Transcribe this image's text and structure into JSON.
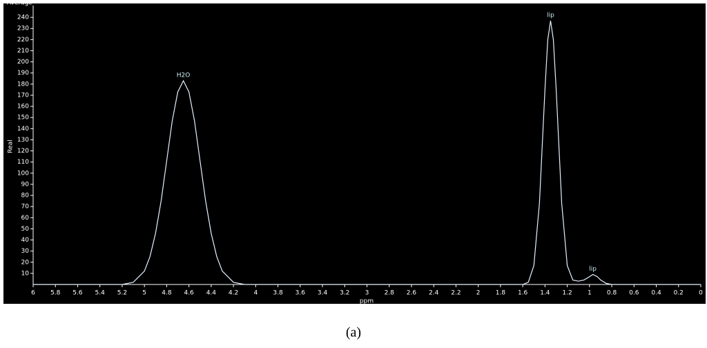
{
  "chart_data": {
    "type": "line",
    "title": "Average",
    "caption": "(a)",
    "x_label": "ppm",
    "y_label": "Real",
    "xlim": [
      6,
      0
    ],
    "ylim": [
      0,
      250
    ],
    "xticks": [
      6,
      5.8,
      5.6,
      5.4,
      5.2,
      5,
      4.8,
      4.6,
      4.4,
      4.2,
      4,
      3.8,
      3.6,
      3.4,
      3.2,
      3,
      2.8,
      2.6,
      2.4,
      2.2,
      2,
      1.8,
      1.6,
      1.4,
      1.2,
      1,
      0.8,
      0.6,
      0.4,
      0.2,
      0
    ],
    "yticks": [
      10,
      20,
      30,
      40,
      50,
      60,
      70,
      80,
      90,
      100,
      110,
      120,
      130,
      140,
      150,
      160,
      170,
      180,
      190,
      200,
      210,
      220,
      230,
      240
    ],
    "series": [
      {
        "color": "#e6f2ff",
        "x": [
          6,
          5.2,
          5.1,
          5.0,
          4.95,
          4.9,
          4.85,
          4.8,
          4.75,
          4.7,
          4.65,
          4.6,
          4.55,
          4.5,
          4.45,
          4.4,
          4.35,
          4.3,
          4.2,
          4.1,
          1.6,
          1.55,
          1.5,
          1.45,
          1.4,
          1.375,
          1.35,
          1.325,
          1.3,
          1.25,
          1.2,
          1.15,
          1.1,
          1.05,
          1.0,
          0.97,
          0.93,
          0.9,
          0.85,
          0.8,
          0
        ],
        "values": [
          0,
          0,
          2,
          12,
          25,
          46,
          75,
          111,
          147,
          173,
          183,
          173,
          147,
          111,
          75,
          46,
          25,
          12,
          2,
          0,
          0,
          2,
          17,
          73,
          176,
          220,
          237,
          220,
          176,
          73,
          17,
          4,
          3,
          4,
          7,
          9,
          7,
          4,
          1,
          0,
          0
        ]
      }
    ],
    "annotations": [
      {
        "text": "H2O",
        "x": 4.65,
        "y": 183
      },
      {
        "text": "lip",
        "x": 1.35,
        "y": 237
      },
      {
        "text": "lip",
        "x": 0.97,
        "y": 9
      }
    ]
  }
}
